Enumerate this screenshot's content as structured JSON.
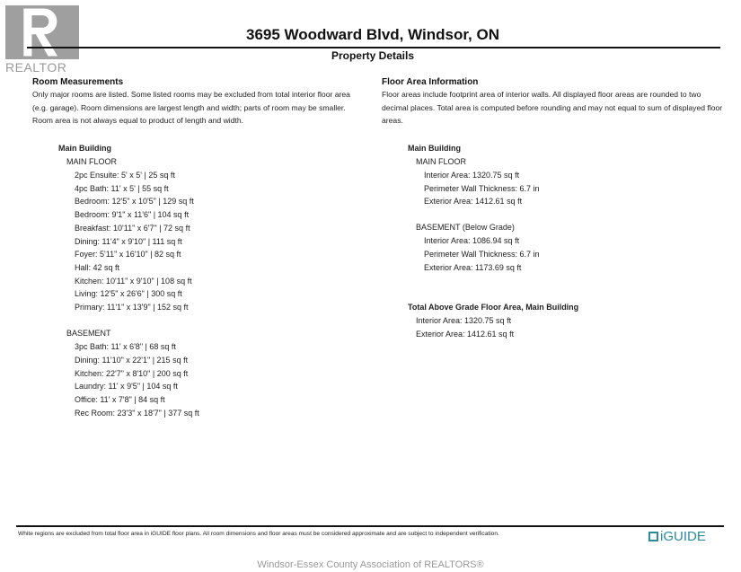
{
  "header": {
    "title": "3695 Woodward Blvd, Windsor, ON",
    "subtitle": "Property Details"
  },
  "watermark": {
    "logo_text": "REALTOR",
    "bottom": "Windsor-Essex County Association of REALTORS®"
  },
  "left": {
    "heading": "Room Measurements",
    "note": "Only major rooms are listed. Some listed rooms may be excluded from total interior floor area (e.g. garage). Room dimensions are largest length and width; parts of room may be smaller. Room area is not always equal to product of length and width.",
    "building": "Main Building",
    "floors": [
      {
        "name": "MAIN FLOOR",
        "rooms": [
          "2pc Ensuite: 5' x 5' | 25 sq ft",
          "4pc Bath: 11' x 5' | 55 sq ft",
          "Bedroom: 12'5\" x 10'5\" | 129 sq ft",
          "Bedroom: 9'1\" x 11'6\" | 104 sq ft",
          "Breakfast: 10'11\" x 6'7\" | 72 sq ft",
          "Dining: 11'4\" x 9'10\" | 111 sq ft",
          "Foyer: 5'11\" x 16'10\" | 82 sq ft",
          "Hall: 42 sq ft",
          "Kitchen: 10'11\" x 9'10\" | 108 sq ft",
          "Living: 12'5\" x 26'6\" | 300 sq ft",
          "Primary: 11'1\" x 13'9\" | 152 sq ft"
        ]
      },
      {
        "name": "BASEMENT",
        "rooms": [
          "3pc Bath: 11' x 6'8\" | 68 sq ft",
          "Dining: 11'10\" x 22'1\" | 215 sq ft",
          "Kitchen: 22'7\" x 8'10\" | 200 sq ft",
          "Laundry: 11' x 9'5\" | 104 sq ft",
          "Office: 11' x 7'8\" | 84 sq ft",
          "Rec Room: 23'3\" x 18'7\" | 377 sq ft"
        ]
      }
    ]
  },
  "right": {
    "heading": "Floor Area Information",
    "note": "Floor areas include footprint area of interior walls. All displayed floor areas are rounded to two decimal places. Total area is computed before rounding and may not equal to sum of displayed floor areas.",
    "building": "Main Building",
    "floors": [
      {
        "name": "MAIN FLOOR",
        "lines": [
          "Interior Area: 1320.75 sq ft",
          "Perimeter Wall Thickness: 6.7 in",
          "Exterior Area: 1412.61 sq ft"
        ]
      },
      {
        "name": "BASEMENT (Below Grade)",
        "lines": [
          "Interior Area: 1086.94 sq ft",
          "Perimeter Wall Thickness: 6.7 in",
          "Exterior Area: 1173.69 sq ft"
        ]
      }
    ],
    "total_heading": "Total Above Grade Floor Area, Main Building",
    "total_lines": [
      "Interior Area: 1320.75 sq ft",
      "Exterior Area: 1412.61 sq ft"
    ]
  },
  "footer": {
    "note": "White regions are excluded from total floor area in iGUIDE floor plans. All room dimensions and floor areas must be considered approximate and are subject to independent verification.",
    "brand": "iGUIDE",
    "brand_color": "#2b8c9a"
  }
}
